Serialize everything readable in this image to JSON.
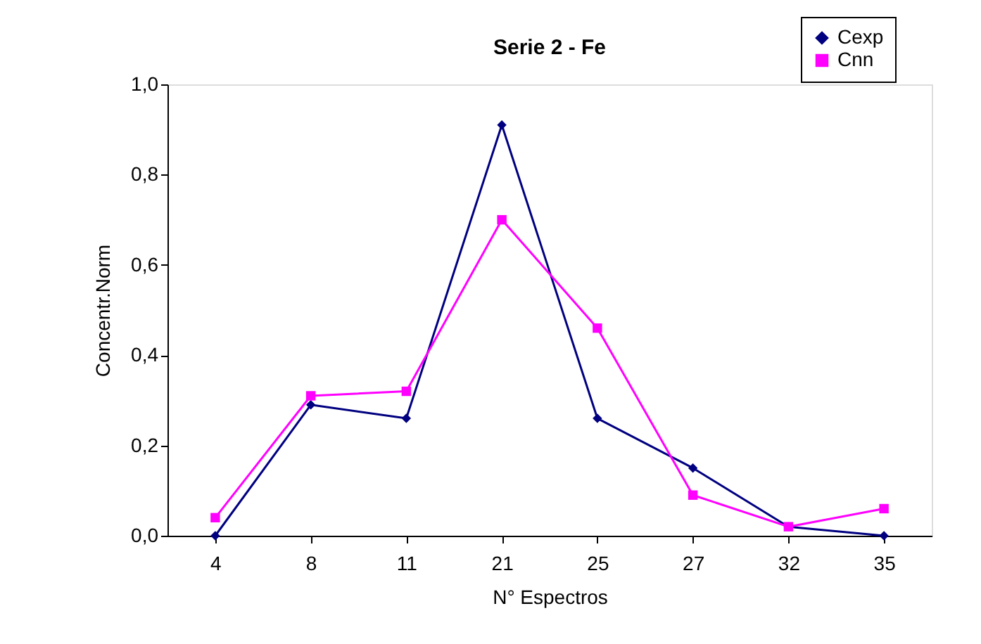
{
  "chart_data": {
    "type": "line",
    "title": "Serie 2 - Fe",
    "xlabel": "N° Espectros",
    "ylabel": "Concentr.Norm",
    "categories": [
      "4",
      "8",
      "11",
      "21",
      "25",
      "27",
      "32",
      "35"
    ],
    "series": [
      {
        "name": "Cexp",
        "color": "#000080",
        "marker": "diamond",
        "values": [
          0,
          0.29,
          0.26,
          0.91,
          0.26,
          0.15,
          0.02,
          0
        ]
      },
      {
        "name": "Cnn",
        "color": "#ff00ff",
        "marker": "square",
        "values": [
          0.04,
          0.31,
          0.32,
          0.7,
          0.46,
          0.09,
          0.02,
          0.06
        ]
      }
    ],
    "ylim": [
      0,
      1
    ],
    "yticks": [
      {
        "value": 0,
        "label": "0,0"
      },
      {
        "value": 0.2,
        "label": "0,2"
      },
      {
        "value": 0.4,
        "label": "0,4"
      },
      {
        "value": 0.6,
        "label": "0,6"
      },
      {
        "value": 0.8,
        "label": "0,8"
      },
      {
        "value": 1,
        "label": "1,0"
      }
    ],
    "grid": false,
    "legend": "top right",
    "line_style": "solid"
  }
}
